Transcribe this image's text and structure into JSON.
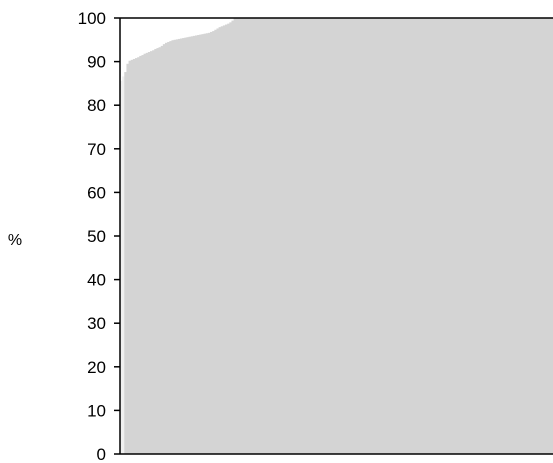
{
  "chart_data": {
    "type": "bar",
    "title": "",
    "xlabel": "",
    "ylabel": "%",
    "ylim": [
      0,
      100
    ],
    "yticks": [
      0,
      10,
      20,
      30,
      40,
      50,
      60,
      70,
      80,
      90,
      100
    ],
    "ytick_labels": [
      "0",
      "10",
      "20",
      "30",
      "40",
      "50",
      "60",
      "70",
      "80",
      "90",
      "100"
    ],
    "grid": false,
    "legend": "none",
    "bar_color": "#d4d4d4",
    "highlight_color": "#f0f0f0",
    "highlight_bar_indices": [
      0,
      1
    ],
    "values": [
      85.6,
      86.6,
      87.6,
      89.5,
      90.2,
      90.4,
      90.6,
      90.8,
      91.0,
      91.3,
      91.5,
      91.8,
      92.0,
      92.2,
      92.4,
      92.6,
      92.9,
      93.1,
      93.3,
      93.6,
      94.0,
      94.3,
      94.5,
      94.7,
      94.9,
      95.0,
      95.1,
      95.2,
      95.3,
      95.4,
      95.5,
      95.6,
      95.7,
      95.8,
      95.9,
      96.0,
      96.1,
      96.2,
      96.3,
      96.4,
      96.5,
      96.6,
      96.8,
      97.0,
      97.3,
      97.6,
      97.9,
      98.1,
      98.3,
      98.5,
      98.7,
      99.0,
      99.4,
      100,
      100,
      100,
      100,
      100,
      100,
      100,
      100,
      100,
      100,
      100,
      100,
      100,
      100,
      100,
      100,
      100,
      100,
      100,
      100,
      100,
      100,
      100,
      100,
      100,
      100,
      100,
      100,
      100,
      100,
      100,
      100,
      100,
      100,
      100,
      100,
      100,
      100,
      100,
      100,
      100,
      100,
      100,
      100,
      100,
      100,
      100,
      100,
      100,
      100,
      100,
      100,
      100,
      100,
      100,
      100,
      100,
      100,
      100,
      100,
      100,
      100,
      100,
      100,
      100,
      100,
      100,
      100,
      100,
      100,
      100,
      100,
      100,
      100,
      100,
      100,
      100,
      100,
      100,
      100,
      100,
      100,
      100,
      100,
      100,
      100,
      100,
      100,
      100,
      100,
      100,
      100,
      100,
      100,
      100,
      100,
      100,
      100,
      100,
      100,
      100,
      100,
      100,
      100,
      100,
      100,
      100,
      100,
      100,
      100,
      100,
      100,
      100,
      100,
      100,
      100,
      100,
      100,
      100,
      100,
      100,
      100,
      100,
      100,
      100,
      100,
      100,
      100,
      100,
      100,
      100,
      100,
      100,
      100,
      100,
      100,
      100,
      100,
      100,
      100,
      100,
      100,
      100,
      100,
      100,
      100,
      100,
      100,
      100
    ]
  }
}
